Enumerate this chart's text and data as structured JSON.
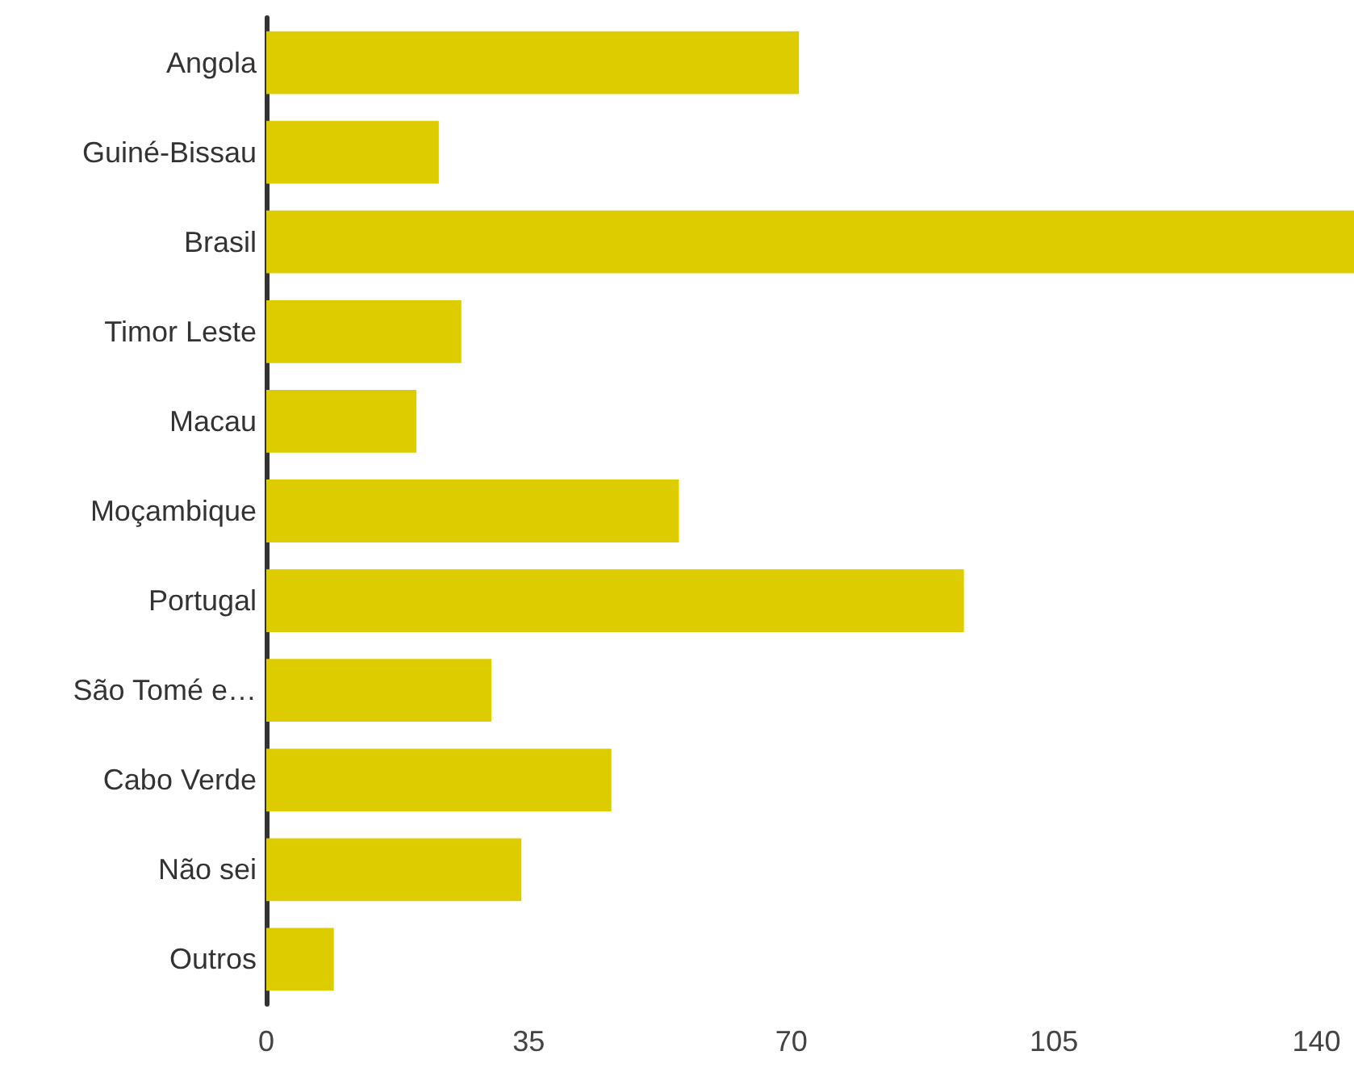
{
  "chart_data": {
    "type": "bar",
    "orientation": "horizontal",
    "categories": [
      "Angola",
      "Guiné-Bissau",
      "Brasil",
      "Timor Leste",
      "Macau",
      "Moçambique",
      "Portugal",
      "São Tomé e…",
      "Cabo Verde",
      "Não sei",
      "Outros"
    ],
    "values": [
      71,
      23,
      145,
      26,
      20,
      55,
      93,
      30,
      46,
      34,
      9
    ],
    "color": "#dccc00",
    "xlim": [
      0,
      145
    ],
    "xticks": [
      0,
      35,
      70,
      105,
      140
    ],
    "grid": false
  }
}
